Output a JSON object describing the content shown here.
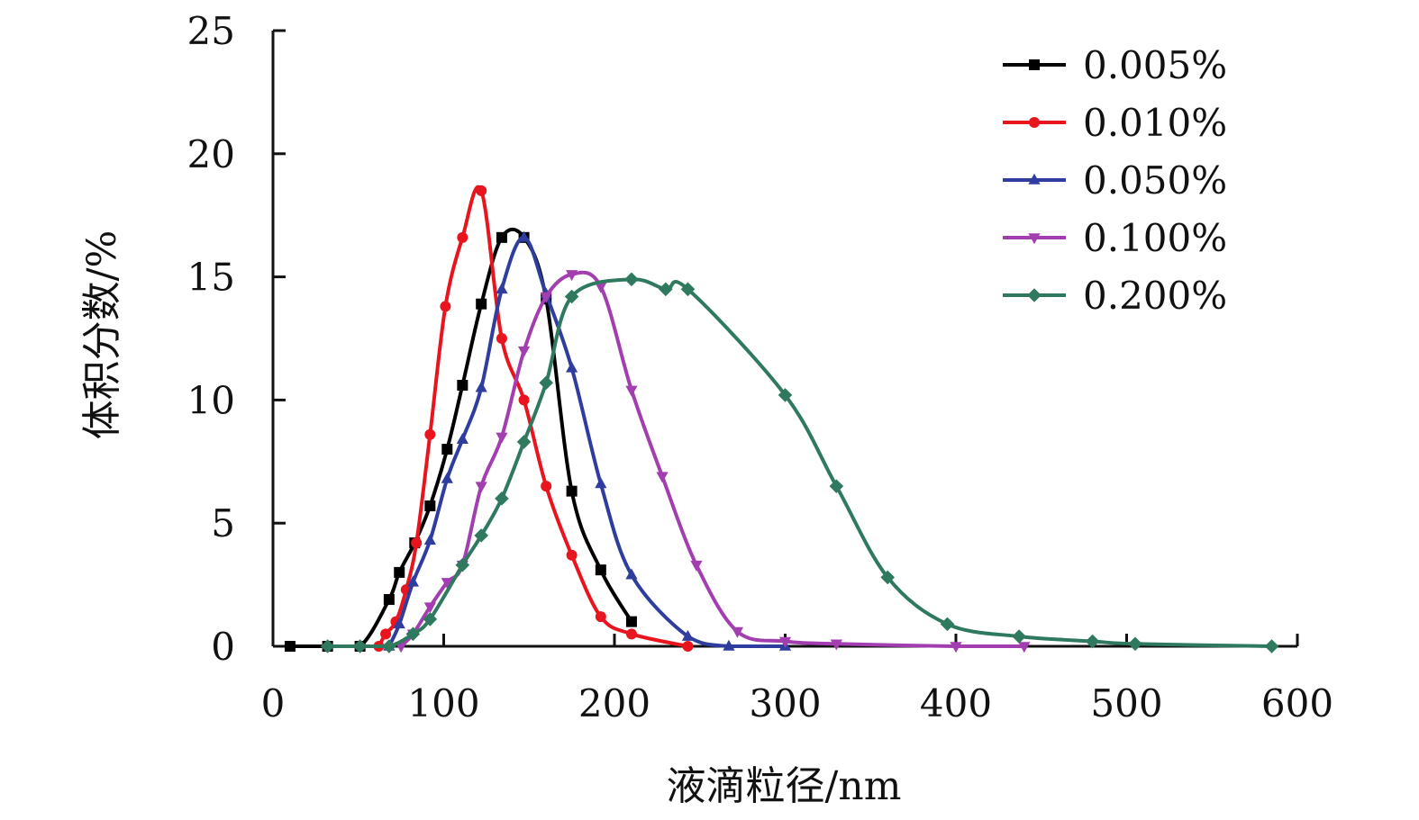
{
  "chart_data": {
    "type": "line",
    "title": "",
    "xlabel": "液滴粒径/nm",
    "ylabel": "体积分数/%",
    "xlim": [
      0,
      600
    ],
    "ylim": [
      0,
      25
    ],
    "xticks": [
      "0",
      "100",
      "200",
      "300",
      "400",
      "500",
      "600"
    ],
    "yticks": [
      "0",
      "5",
      "10",
      "15",
      "20",
      "25"
    ],
    "grid": false,
    "legend_position": "top-right",
    "series": [
      {
        "name": "0.005%",
        "color": "#000000",
        "marker": "square",
        "x": [
          10,
          32,
          51,
          68,
          74,
          83,
          92,
          102,
          111,
          122,
          134,
          147,
          160,
          175,
          192,
          210
        ],
        "y": [
          0,
          0,
          0,
          1.9,
          3.0,
          4.2,
          5.7,
          8.0,
          10.6,
          13.9,
          16.6,
          16.6,
          14.1,
          6.3,
          3.1,
          1.0
        ]
      },
      {
        "name": "0.010%",
        "color": "#e8141e",
        "marker": "circle",
        "x": [
          62,
          66,
          72,
          78,
          84,
          92,
          101,
          111,
          122,
          134,
          147,
          160,
          175,
          192,
          210,
          243
        ],
        "y": [
          0,
          0.5,
          1.0,
          2.3,
          4.2,
          8.6,
          13.8,
          16.6,
          18.5,
          12.5,
          10.0,
          6.5,
          3.7,
          1.2,
          0.5,
          0
        ]
      },
      {
        "name": "0.050%",
        "color": "#2e3d9e",
        "marker": "triangle-up",
        "x": [
          68,
          74,
          82,
          92,
          102,
          111,
          122,
          134,
          147,
          160,
          175,
          192,
          210,
          243,
          267,
          300
        ],
        "y": [
          0,
          0.9,
          2.6,
          4.3,
          6.8,
          8.4,
          10.5,
          14.5,
          16.6,
          14.3,
          11.3,
          6.6,
          2.9,
          0.4,
          0,
          0
        ]
      },
      {
        "name": "0.100%",
        "color": "#a23eb0",
        "marker": "triangle-down",
        "x": [
          75,
          82,
          92,
          102,
          111,
          122,
          134,
          147,
          160,
          175,
          192,
          210,
          228,
          248,
          272,
          300,
          330,
          400,
          440
        ],
        "y": [
          0,
          0.5,
          1.6,
          2.6,
          3.3,
          6.5,
          8.5,
          12.0,
          14.2,
          15.1,
          14.6,
          10.4,
          6.9,
          3.3,
          0.6,
          0.2,
          0.1,
          0,
          0
        ]
      },
      {
        "name": "0.200%",
        "color": "#2f7a5f",
        "marker": "diamond",
        "x": [
          32,
          51,
          68,
          82,
          92,
          111,
          122,
          134,
          147,
          160,
          175,
          210,
          230,
          243,
          300,
          330,
          360,
          395,
          437,
          480,
          505,
          585
        ],
        "y": [
          0,
          0,
          0,
          0.5,
          1.1,
          3.3,
          4.5,
          6.0,
          8.3,
          10.7,
          14.2,
          14.9,
          14.5,
          14.5,
          10.2,
          6.5,
          2.8,
          0.9,
          0.4,
          0.2,
          0.1,
          0
        ]
      }
    ]
  }
}
